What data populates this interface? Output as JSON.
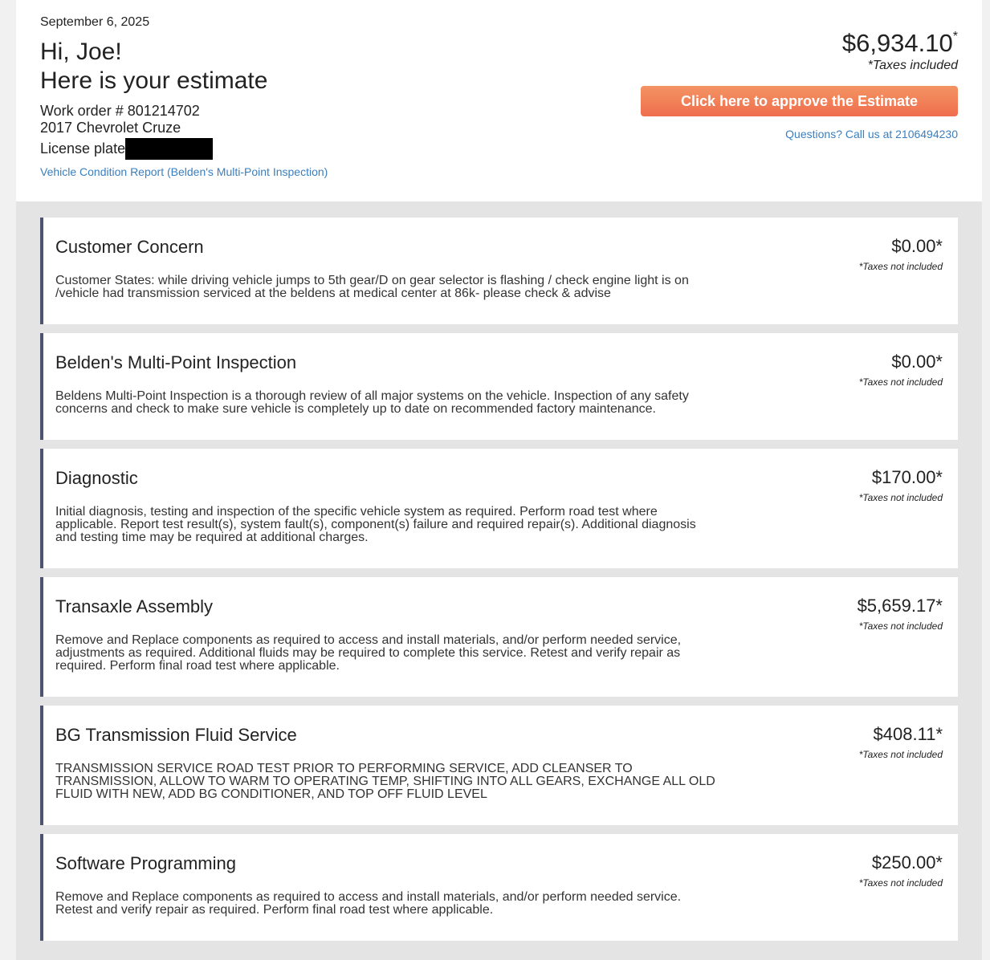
{
  "header": {
    "date": "September 6, 2025",
    "greeting": "Hi, Joe!",
    "subtitle": "Here is your estimate",
    "work_order": "Work order # 801214702",
    "vehicle": "2017 Chevrolet Cruze",
    "license_label": "License plate",
    "report_link": "Vehicle Condition Report (Belden's Multi-Point Inspection)",
    "total": "$6,934.10",
    "total_star": "*",
    "taxes_note": "*Taxes included",
    "approve_label": "Click here to approve the Estimate",
    "questions": "Questions? Call us at 2106494230"
  },
  "items": [
    {
      "title": "Customer Concern",
      "desc": "Customer States: while driving vehicle jumps to 5th gear/D on gear selector is flashing / check engine light is on /vehicle had transmission serviced at the beldens at medical center at 86k- please check & advise",
      "price": "$0.00*",
      "note": "*Taxes not included"
    },
    {
      "title": "Belden's Multi-Point Inspection",
      "desc": "Beldens Multi-Point Inspection is a thorough review of all major systems on the vehicle. Inspection of any safety concerns and check to make sure vehicle is completely up to date on recommended factory maintenance.",
      "price": "$0.00*",
      "note": "*Taxes not included"
    },
    {
      "title": "Diagnostic",
      "desc": "Initial diagnosis, testing and inspection of the specific vehicle system as required. Perform road test where applicable. Report test result(s), system fault(s), component(s) failure and required repair(s). Additional diagnosis and testing time may be required at additional charges.",
      "price": "$170.00*",
      "note": "*Taxes not included"
    },
    {
      "title": "Transaxle Assembly",
      "desc": "Remove and Replace components as required to access and install materials, and/or perform needed service, adjustments as required. Additional fluids may be required to complete this service. Retest and verify repair as required. Perform final road test where applicable.",
      "price": "$5,659.17*",
      "note": "*Taxes not included"
    },
    {
      "title": "BG Transmission Fluid Service",
      "desc": "TRANSMISSION SERVICE ROAD TEST PRIOR TO PERFORMING SERVICE, ADD CLEANSER TO TRANSMISSION, ALLOW TO WARM TO OPERATING TEMP, SHIFTING INTO ALL GEARS, EXCHANGE ALL OLD FLUID WITH NEW, ADD BG CONDITIONER, AND TOP OFF FLUID LEVEL",
      "price": "$408.11*",
      "note": "*Taxes not included"
    },
    {
      "title": "Software Programming",
      "desc": "Remove and Replace components as required to access and install materials, and/or perform needed service. Retest and verify repair as required. Perform final road test where applicable.",
      "price": "$250.00*",
      "note": "*Taxes not included"
    }
  ]
}
